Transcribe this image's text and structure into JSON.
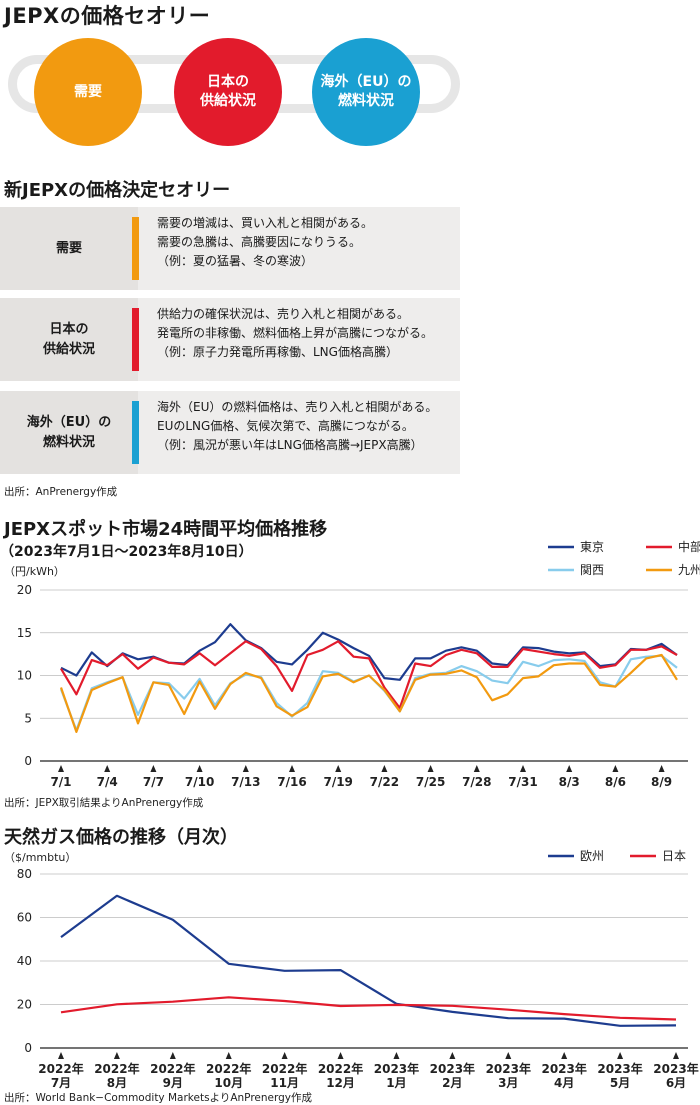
{
  "theory": {
    "title": "JEPXの価格セオリー",
    "circles": [
      {
        "label": "需要",
        "color": "#f29a10"
      },
      {
        "label": "日本の\n供給状況",
        "color": "#e21b2c"
      },
      {
        "label": "海外（EU）の\n燃料状況",
        "color": "#1aa0d2"
      }
    ]
  },
  "new_theory": {
    "title": "新JEPXの価格決定セオリー",
    "rows": [
      {
        "label": "需要",
        "color": "#f29a10",
        "lines": [
          "需要の増減は、買い入札と相関がある。",
          "需要の急騰は、高騰要因になりうる。",
          "（例：夏の猛暑、冬の寒波）"
        ]
      },
      {
        "label": "日本の\n供給状況",
        "color": "#e21b2c",
        "lines": [
          "供給力の確保状況は、売り入札と相関がある。",
          "発電所の非稼働、燃料価格上昇が高騰につながる。",
          "（例：原子力発電所再稼働、LNG価格高騰）"
        ]
      },
      {
        "label": "海外（EU）の\n燃料状況",
        "color": "#1aa0d2",
        "lines": [
          "海外（EU）の燃料価格は、売り入札と相関がある。",
          "EUのLNG価格、気候次第で、高騰につながる。",
          "（例：風況が悪い年はLNG価格高騰→JEPX高騰）"
        ]
      }
    ],
    "source": "出所：AnPrenergy作成"
  },
  "chart1": {
    "title": "JEPXスポット市場24時間平均価格推移",
    "subtitle": "（2023年7月1日～2023年8月10日）",
    "unit": "（円/kWh）",
    "source": "出所：JEPX取引結果よりAnPrenergy作成"
  },
  "chart2": {
    "title": "天然ガス価格の推移（月次）",
    "unit": "（$/mmbtu）",
    "source": "出所：World Bank−Commodity MarketsよりAnPrenergy作成"
  },
  "chart_data": [
    {
      "type": "line",
      "title": "JEPXスポット市場24時間平均価格推移",
      "subtitle": "（2023年7月1日～2023年8月10日）",
      "ylabel": "（円/kWh）",
      "ylim": [
        0,
        20
      ],
      "yticks": [
        0,
        5,
        10,
        15,
        20
      ],
      "grid": true,
      "legend": "top-right",
      "x_tick_labels": [
        "7/1",
        "7/4",
        "7/7",
        "7/10",
        "7/13",
        "7/16",
        "7/19",
        "7/22",
        "7/25",
        "7/28",
        "7/31",
        "8/3",
        "8/6",
        "8/9"
      ],
      "x_tick_index": [
        0,
        3,
        6,
        9,
        12,
        15,
        18,
        21,
        24,
        27,
        30,
        33,
        36,
        39
      ],
      "x_count": 41,
      "series": [
        {
          "name": "東京",
          "color": "#1d3c8f",
          "values": [
            10.9,
            10.0,
            12.7,
            11.1,
            12.6,
            11.9,
            12.2,
            11.5,
            11.4,
            12.9,
            13.9,
            16.0,
            14.1,
            13.2,
            11.6,
            11.3,
            13.0,
            15.0,
            14.2,
            13.2,
            12.3,
            9.7,
            9.5,
            12.0,
            12.0,
            12.9,
            13.3,
            12.9,
            11.4,
            11.2,
            13.3,
            13.2,
            12.8,
            12.6,
            12.7,
            11.1,
            11.3,
            13.1,
            13.0,
            13.7,
            12.4
          ]
        },
        {
          "name": "中部",
          "color": "#e21b2c",
          "values": [
            10.8,
            7.8,
            11.8,
            11.2,
            12.5,
            10.8,
            12.1,
            11.5,
            11.3,
            12.6,
            11.2,
            12.6,
            14.0,
            13.1,
            11.1,
            8.2,
            12.4,
            13.0,
            14.0,
            12.2,
            12.0,
            8.6,
            6.2,
            11.4,
            11.1,
            12.4,
            13.0,
            12.6,
            11.0,
            11.0,
            13.1,
            12.8,
            12.5,
            12.3,
            12.6,
            10.9,
            11.2,
            13.0,
            13.0,
            13.4,
            12.4
          ]
        },
        {
          "name": "関西",
          "color": "#88ccec",
          "values": [
            8.4,
            3.6,
            8.5,
            9.2,
            9.8,
            5.4,
            9.2,
            9.1,
            7.3,
            9.6,
            6.5,
            9.1,
            10.1,
            9.8,
            6.8,
            5.2,
            6.8,
            10.5,
            10.3,
            9.3,
            10.0,
            8.2,
            5.8,
            9.7,
            10.2,
            10.3,
            11.1,
            10.5,
            9.4,
            9.1,
            11.6,
            11.1,
            11.8,
            11.9,
            11.7,
            9.2,
            8.7,
            11.9,
            12.2,
            12.3,
            10.9
          ]
        },
        {
          "name": "九州",
          "color": "#f29a10",
          "values": [
            8.6,
            3.4,
            8.3,
            9.1,
            9.8,
            4.4,
            9.2,
            8.9,
            5.5,
            9.3,
            6.1,
            9.0,
            10.3,
            9.7,
            6.4,
            5.3,
            6.3,
            9.9,
            10.2,
            9.2,
            10.0,
            8.3,
            5.8,
            9.5,
            10.1,
            10.2,
            10.6,
            9.8,
            7.1,
            7.8,
            9.7,
            9.9,
            11.2,
            11.4,
            11.4,
            8.9,
            8.7,
            10.3,
            12.0,
            12.4,
            9.5
          ]
        }
      ]
    },
    {
      "type": "line",
      "title": "天然ガス価格の推移（月次）",
      "ylabel": "（$/mmbtu）",
      "ylim": [
        0,
        80
      ],
      "yticks": [
        0,
        20,
        40,
        60,
        80
      ],
      "grid": true,
      "legend": "top-right",
      "categories": [
        "2022年\n7月",
        "2022年\n8月",
        "2022年\n9月",
        "2022年\n10月",
        "2022年\n11月",
        "2022年\n12月",
        "2023年\n1月",
        "2023年\n2月",
        "2023年\n3月",
        "2023年\n4月",
        "2023年\n5月",
        "2023年\n6月"
      ],
      "series": [
        {
          "name": "欧州",
          "color": "#1d3c8f",
          "values": [
            51.0,
            70.0,
            59.0,
            38.7,
            35.5,
            35.8,
            20.3,
            16.6,
            13.7,
            13.5,
            10.2,
            10.4
          ]
        },
        {
          "name": "日本",
          "color": "#e21b2c",
          "values": [
            16.4,
            20.1,
            21.3,
            23.3,
            21.6,
            19.3,
            19.8,
            19.4,
            17.6,
            15.6,
            13.9,
            13.1
          ]
        }
      ]
    }
  ]
}
